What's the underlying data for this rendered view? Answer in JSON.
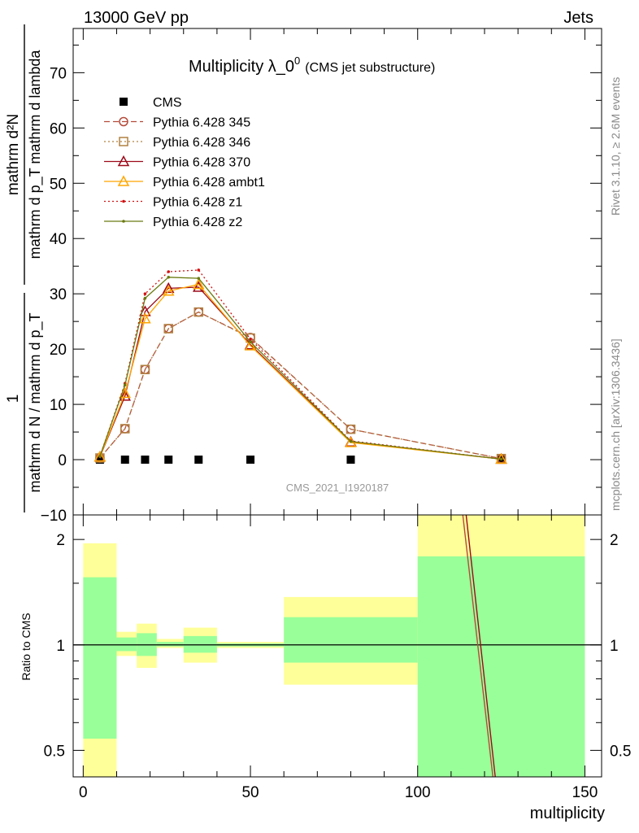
{
  "header": {
    "left": "13000 GeV pp",
    "right": "Jets"
  },
  "title": {
    "main": "Multiplicity λ_0",
    "sup": "0",
    "sub": "(CMS jet substructure)"
  },
  "ylabel": {
    "numerator": "mathrm d²N",
    "denominator": "mathrm d p_T mathrm d lambda",
    "prefix": "1",
    "prefix_denominator": "mathrm d N / mathrm d p_T"
  },
  "ylabel_full": "1 / (mathrm d N / mathrm d p_T) · mathrm d²N / (mathrm d p_T mathrm d lambda)",
  "side_text_top": "Rivet 3.1.10, ≥ 2.6M events",
  "side_text_bottom": "mcplots.cern.ch [arXiv:1306.3436]",
  "watermark": "CMS_2021_I1920187",
  "ratio_ylabel": "Ratio to CMS",
  "xlabel": "multiplicity",
  "colors": {
    "band_inner": "#99ff99",
    "band_outer": "#ffff99",
    "cms": "#000000",
    "p345": "#b44b3b",
    "p346": "#b08040",
    "p370": "#9c0a1a",
    "ambt1": "#ffa500",
    "z1": "#d11010",
    "z2": "#6b7a10"
  },
  "chart_data": {
    "type": "line",
    "main_panel": {
      "xlim": [
        -3,
        155
      ],
      "ylim": [
        -10,
        78
      ],
      "yticks": [
        -10,
        0,
        10,
        20,
        30,
        40,
        50,
        60,
        70
      ],
      "xticks": [
        0,
        50,
        100,
        150
      ],
      "legend_position": "top-left",
      "series": [
        {
          "name": "CMS",
          "style": "cms",
          "x": [
            5,
            12.5,
            18.5,
            25.5,
            34.5,
            50,
            80,
            125
          ],
          "y": [
            0,
            0,
            0,
            0,
            0,
            0,
            0,
            0
          ]
        },
        {
          "name": "Pythia 6.428 345",
          "style": "p345",
          "x": [
            5,
            12.5,
            18.5,
            25.5,
            34.5,
            50,
            80,
            125
          ],
          "y": [
            0.3,
            5.6,
            16.3,
            23.7,
            26.7,
            22.1,
            5.5,
            0.2
          ]
        },
        {
          "name": "Pythia 6.428 346",
          "style": "p346",
          "x": [
            5,
            12.5,
            18.5,
            25.5,
            34.5,
            50,
            80,
            125
          ],
          "y": [
            0.3,
            5.6,
            16.3,
            23.7,
            26.7,
            22.0,
            5.5,
            0.2
          ]
        },
        {
          "name": "Pythia 6.428 370",
          "style": "p370",
          "x": [
            5,
            12.5,
            18.5,
            25.5,
            34.5,
            50,
            80,
            125
          ],
          "y": [
            0.5,
            11.5,
            26.8,
            31.0,
            31.2,
            20.8,
            3.2,
            0.1
          ]
        },
        {
          "name": "Pythia 6.428 ambt1",
          "style": "ambt1",
          "x": [
            5,
            12.5,
            18.5,
            25.5,
            34.5,
            50,
            80,
            125
          ],
          "y": [
            0.5,
            12.0,
            25.5,
            30.5,
            31.7,
            20.6,
            3.1,
            0.1
          ]
        },
        {
          "name": "Pythia 6.428 z1",
          "style": "z1",
          "x": [
            5,
            12.5,
            18.5,
            25.5,
            34.5,
            50,
            80,
            125
          ],
          "y": [
            0.6,
            13.8,
            30.0,
            34.0,
            34.3,
            21.8,
            3.4,
            0.1
          ]
        },
        {
          "name": "Pythia 6.428 z2",
          "style": "z2",
          "x": [
            5,
            12.5,
            18.5,
            25.5,
            34.5,
            50,
            80,
            125
          ],
          "y": [
            0.6,
            13.5,
            29.2,
            33.0,
            32.8,
            21.3,
            3.3,
            0.1
          ]
        }
      ]
    },
    "ratio_panel": {
      "type": "area",
      "log_y": true,
      "ylim": [
        0.42,
        2.35
      ],
      "yticks": [
        0.5,
        1,
        2
      ],
      "bins": [
        {
          "lo": 0,
          "hi": 10,
          "inner": [
            0.54,
            1.56
          ],
          "outer": [
            0.42,
            1.95
          ]
        },
        {
          "lo": 10,
          "hi": 16,
          "inner": [
            0.96,
            1.05
          ],
          "outer": [
            0.93,
            1.09
          ]
        },
        {
          "lo": 16,
          "hi": 22,
          "inner": [
            0.93,
            1.08
          ],
          "outer": [
            0.86,
            1.15
          ]
        },
        {
          "lo": 22,
          "hi": 30,
          "inner": [
            0.99,
            1.02
          ],
          "outer": [
            0.98,
            1.04
          ]
        },
        {
          "lo": 30,
          "hi": 40,
          "inner": [
            0.95,
            1.06
          ],
          "outer": [
            0.89,
            1.12
          ]
        },
        {
          "lo": 40,
          "hi": 60,
          "inner": [
            0.99,
            1.01
          ],
          "outer": [
            0.98,
            1.02
          ]
        },
        {
          "lo": 60,
          "hi": 100,
          "inner": [
            0.89,
            1.2
          ],
          "outer": [
            0.77,
            1.37
          ]
        },
        {
          "lo": 100,
          "hi": 150,
          "inner": [
            0.42,
            1.79
          ],
          "outer": [
            0.42,
            2.35
          ]
        }
      ],
      "lines": [
        {
          "style": "p345",
          "x": [
            113.5,
            122.5
          ],
          "y": [
            2.35,
            0.42
          ]
        },
        {
          "style": "p370",
          "x": [
            114.5,
            123.2
          ],
          "y": [
            2.35,
            0.42
          ]
        }
      ]
    }
  }
}
